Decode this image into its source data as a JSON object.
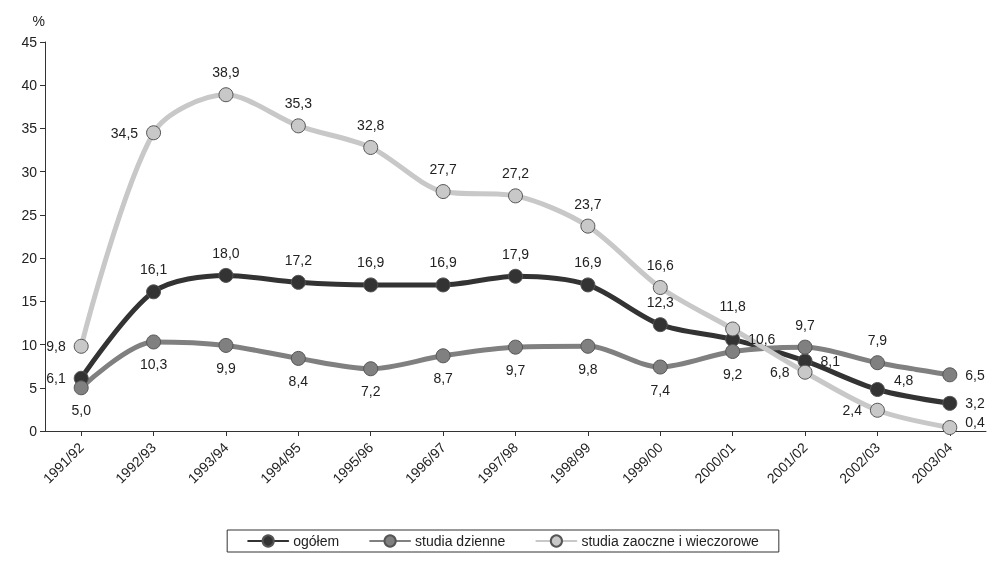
{
  "chart_data": {
    "type": "line",
    "ylabel": "%",
    "categories": [
      "1991/92",
      "1992/93",
      "1993/94",
      "1994/95",
      "1995/96",
      "1996/97",
      "1997/98",
      "1998/99",
      "1999/00",
      "2000/01",
      "2001/02",
      "2002/03",
      "2003/04"
    ],
    "series": [
      {
        "name": "ogółem",
        "color": "#333333",
        "values": [
          6.1,
          16.1,
          18.0,
          17.2,
          16.9,
          16.9,
          17.9,
          16.9,
          12.3,
          10.6,
          8.1,
          4.8,
          3.2
        ],
        "value_labels": [
          "6,1",
          "16,1",
          "18,0",
          "17,2",
          "16,9",
          "16,9",
          "17,9",
          "16,9",
          "12,3",
          "10,6",
          "8,1",
          "4,8",
          "3,2"
        ]
      },
      {
        "name": "studia dzienne",
        "color": "#808080",
        "values": [
          5.0,
          10.3,
          9.9,
          8.4,
          7.2,
          8.7,
          9.7,
          9.8,
          7.4,
          9.2,
          9.7,
          7.9,
          6.5
        ],
        "value_labels": [
          "5,0",
          "10,3",
          "9,9",
          "8,4",
          "7,2",
          "8,7",
          "9,7",
          "9,8",
          "7,4",
          "9,2",
          "9,7",
          "7,9",
          "6,5"
        ]
      },
      {
        "name": "studia zaoczne i wieczorowe",
        "color": "#c8c8c8",
        "values": [
          9.8,
          34.5,
          38.9,
          35.3,
          32.8,
          27.7,
          27.2,
          23.7,
          16.6,
          11.8,
          6.8,
          2.4,
          0.4
        ],
        "value_labels": [
          "9,8",
          "34,5",
          "38,9",
          "35,3",
          "32,8",
          "27,7",
          "27,2",
          "23,7",
          "16,6",
          "11,8",
          "6,8",
          "2,4",
          "0,4"
        ]
      }
    ],
    "ylim": [
      0,
      45
    ],
    "yticks": [
      0,
      5,
      10,
      15,
      20,
      25,
      30,
      35,
      40,
      45
    ],
    "grid": false,
    "legend": "bottom",
    "marker": "circle",
    "line_style": "solid"
  }
}
